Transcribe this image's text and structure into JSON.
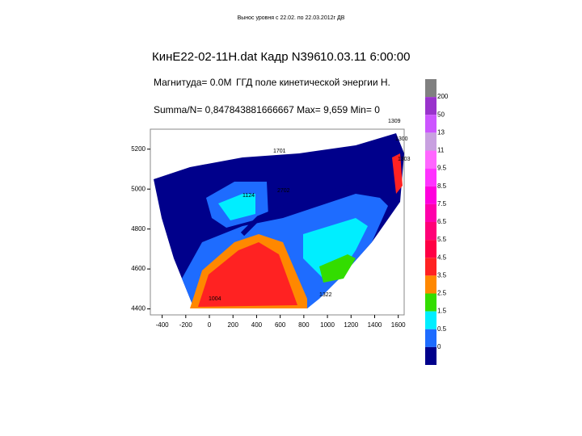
{
  "chart_data": {
    "type": "contour",
    "slide_title": "Вынос уровня с 22.02. по 22.03.2012г ДВ",
    "title": "КинЕ22-02-11Н.dat Кадр N396",
    "datetime": "10.03.11 6:00:00",
    "magnitude": "Магнитуда= 0.0М",
    "field": "ГГД поле кинетической энергии Н.",
    "stats": "Summa/N= 0,847843881666667 Max= 9,659 Min= 0",
    "xlim": [
      -500,
      1650
    ],
    "xticks": [
      -400,
      -200,
      0,
      200,
      400,
      600,
      800,
      1000,
      1200,
      1400,
      1600
    ],
    "ylim": [
      4370,
      5300
    ],
    "yticks": [
      4400,
      4600,
      4800,
      5000,
      5200
    ],
    "colorbar": {
      "colors": [
        "#808080",
        "#9933cc",
        "#cc55ff",
        "#c8a0e0",
        "#ff66ff",
        "#ff33ff",
        "#ff00dd",
        "#ff00aa",
        "#ff0077",
        "#ff0044",
        "#ff2222",
        "#ff8800",
        "#33dd00",
        "#00eeff",
        "#1e6cff",
        "#00008b"
      ],
      "labels": [
        200,
        50,
        13,
        11,
        9.5,
        8.5,
        7.5,
        6.5,
        5.5,
        4.5,
        3.5,
        2.5,
        1.5,
        0.5,
        0
      ]
    },
    "annotations": [
      "1309",
      "1300",
      "1303",
      "1701",
      "2702",
      "1124",
      "1322",
      "1004"
    ]
  }
}
